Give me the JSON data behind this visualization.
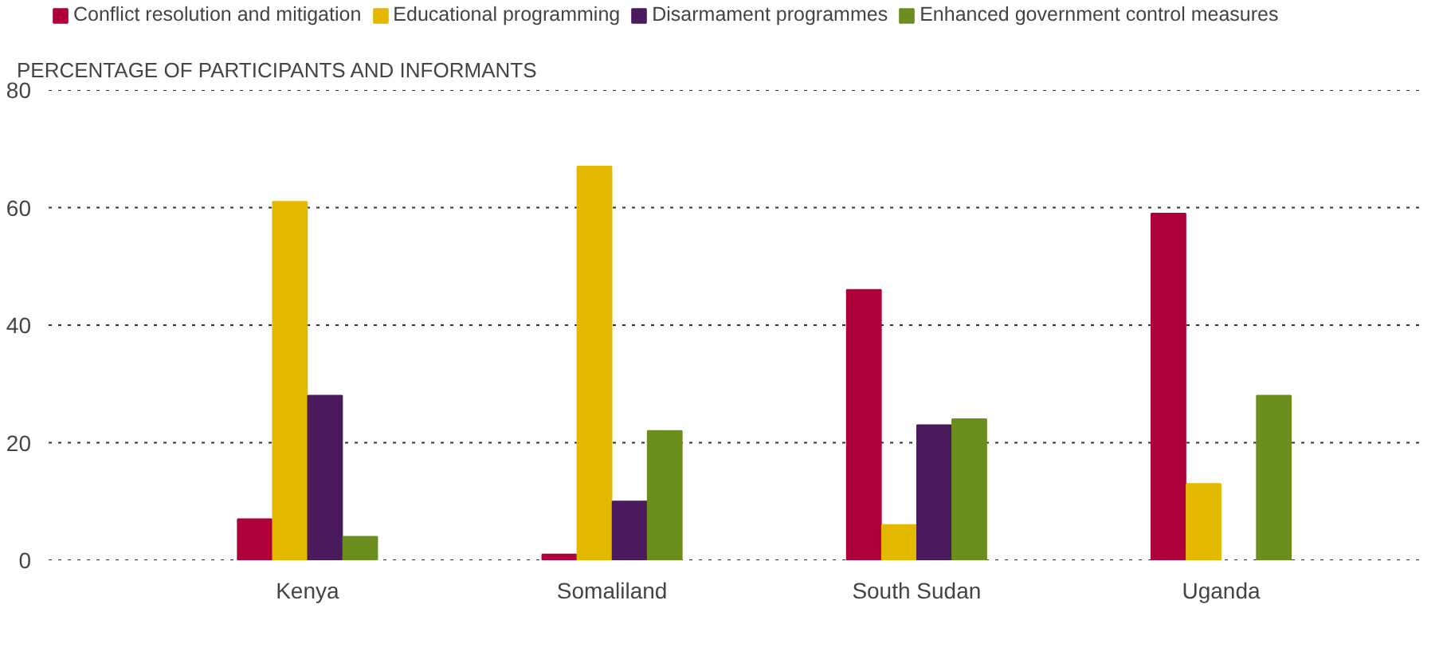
{
  "chart_data": {
    "type": "bar",
    "ylabel": "PERCENTAGE OF PARTICIPANTS AND INFORMANTS",
    "categories": [
      "Kenya",
      "Somaliland",
      "South Sudan",
      "Uganda"
    ],
    "series": [
      {
        "name": "Conflict resolution and mitigation",
        "color": "#b0003a",
        "values": [
          7,
          1,
          46,
          59
        ]
      },
      {
        "name": "Educational programming",
        "color": "#e5b800",
        "values": [
          61,
          67,
          6,
          13
        ]
      },
      {
        "name": "Disarmament programmes",
        "color": "#4a1a5c",
        "values": [
          28,
          10,
          23,
          null
        ]
      },
      {
        "name": "Enhanced government control measures",
        "color": "#6b8e1e",
        "values": [
          4,
          22,
          24,
          28
        ]
      }
    ],
    "ylim": [
      0,
      80
    ],
    "yticks": [
      0,
      20,
      40,
      60,
      80
    ],
    "grid": "y",
    "legend": "top left"
  }
}
